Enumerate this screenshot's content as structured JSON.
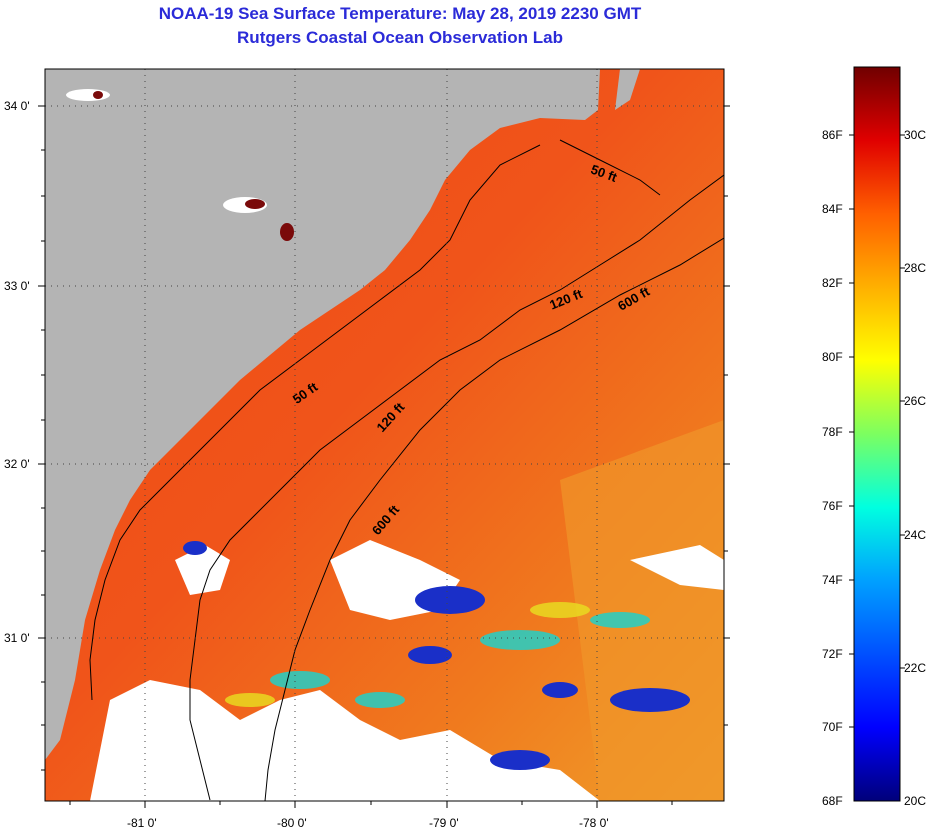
{
  "header": {
    "title": "NOAA-19 Sea Surface Temperature:  May 28, 2019 2230 GMT",
    "subtitle": "Rutgers Coastal Ocean Observation Lab"
  },
  "map": {
    "lat_labels": [
      "34 0'",
      "33 0'",
      "32 0'",
      "31 0'"
    ],
    "lon_labels": [
      "-81 0'",
      "-80 0'",
      "-79 0'",
      "-78 0'"
    ],
    "contours": [
      "50 ft",
      "120 ft",
      "600 ft",
      "50 ft",
      "120 ft",
      "600 ft"
    ]
  },
  "colorbar": {
    "fahrenheit": [
      "86F",
      "84F",
      "82F",
      "80F",
      "78F",
      "76F",
      "74F",
      "72F",
      "70F",
      "68F"
    ],
    "celsius": [
      "30C",
      "28C",
      "26C",
      "24C",
      "22C",
      "20C"
    ]
  },
  "colors": {
    "title": "#2b2bd8",
    "land": "#b4b4b4",
    "ocean_warm": "#f04a10",
    "ocean_mid": "#f08a1c",
    "cold_patch": "#1a2fc8",
    "cloud": "#ffffff"
  }
}
